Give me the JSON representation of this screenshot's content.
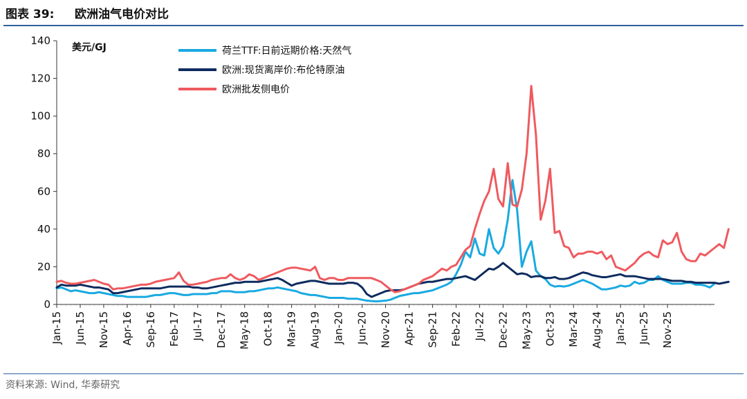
{
  "figure": {
    "number": "图表 39:",
    "title": "欧洲油气电价对比",
    "source": "资料来源: Wind, 华泰研究"
  },
  "chart_data": {
    "type": "line",
    "unit_label": "美元/GJ",
    "ylim": [
      0,
      140
    ],
    "yticks": [
      0,
      20,
      40,
      60,
      80,
      100,
      120,
      140
    ],
    "x_tick_labels": [
      "Jan-15",
      "Jun-15",
      "Nov-15",
      "Apr-16",
      "Sep-16",
      "Feb-17",
      "Jul-17",
      "Dec-17",
      "May-18",
      "Oct-18",
      "Mar-19",
      "Aug-19",
      "Jan-20",
      "Jun-20",
      "Nov-20",
      "Apr-21",
      "Sep-21",
      "Feb-22",
      "Jul-22",
      "Dec-22",
      "May-23",
      "Oct-23",
      "Mar-24",
      "Aug-24",
      "Jan-25",
      "Jun-25",
      "Nov-25"
    ],
    "x_start": "Jan-15",
    "x_interval": "monthly",
    "grid": false,
    "legend_position": "top-left",
    "series": [
      {
        "name": "荷兰TTF:日前远期价格:天然气",
        "color": "#19a9e1",
        "values": [
          8.5,
          9,
          8,
          7,
          7.5,
          7,
          6.5,
          6,
          6,
          6.5,
          6,
          5.5,
          5,
          4.5,
          4.5,
          4,
          4,
          4,
          4,
          4,
          4.5,
          5,
          5,
          5.5,
          6,
          6,
          5.5,
          5,
          5,
          5.5,
          5.5,
          5.5,
          5.5,
          6,
          6,
          7,
          7,
          7,
          6.5,
          6.5,
          6.5,
          7,
          7,
          7.5,
          8,
          8.5,
          8.5,
          9,
          8.5,
          8,
          7.5,
          7,
          6,
          5.5,
          5,
          5,
          4.5,
          4,
          3.5,
          3.5,
          3.5,
          3.5,
          3,
          3,
          3,
          2.5,
          2,
          1.8,
          1.6,
          1.8,
          2,
          2.5,
          3.5,
          4.5,
          5,
          5.5,
          6,
          6,
          6.5,
          7,
          7.5,
          8.5,
          9.5,
          10.5,
          12,
          16,
          21,
          28,
          25,
          35,
          27,
          26,
          40,
          30,
          27,
          31,
          45,
          66,
          50,
          20,
          28,
          33.5,
          18,
          15,
          13.5,
          10.5,
          9.5,
          9.8,
          9.5,
          10,
          11,
          12,
          13,
          12,
          11,
          9.5,
          8,
          8,
          8.5,
          9,
          10,
          9.5,
          10,
          12,
          11,
          11.5,
          13,
          13,
          15,
          13,
          12,
          11,
          11,
          11,
          11.5,
          11.5,
          10.5,
          10.5,
          10,
          9,
          11
        ]
      },
      {
        "name": "欧洲:现货离岸价:布伦特原油",
        "color": "#0d2b5e",
        "values": [
          9,
          10.5,
          10,
          10,
          10,
          10.5,
          10,
          9.5,
          9,
          9,
          8.5,
          8,
          6,
          6,
          6.5,
          7,
          7.5,
          8,
          8.5,
          8.5,
          8.5,
          8.5,
          8.5,
          9,
          9.5,
          9.5,
          9.5,
          9.5,
          9.5,
          9,
          9,
          8.5,
          8.5,
          9,
          9.5,
          10,
          10.5,
          11,
          11.5,
          11.5,
          12,
          12,
          12,
          12,
          12.5,
          13,
          13.5,
          14,
          13,
          11.5,
          10,
          11,
          11.5,
          12,
          12.5,
          12.5,
          12,
          11.5,
          11,
          11,
          11,
          11,
          11.5,
          11.5,
          11,
          9,
          5.5,
          4,
          5,
          6,
          7,
          7.5,
          7.5,
          7.5,
          8,
          9,
          10,
          11,
          11.5,
          12,
          12,
          12.5,
          13,
          13.5,
          13.5,
          14,
          14.5,
          15,
          14,
          13,
          15,
          17,
          19,
          18.5,
          20,
          22,
          20,
          18,
          16,
          16.5,
          16,
          14.5,
          15,
          15,
          14,
          14,
          14.5,
          13.5,
          13.5,
          14,
          15,
          16,
          17,
          16.5,
          15.5,
          15,
          14.5,
          14.5,
          15,
          15.5,
          16,
          15,
          15,
          15,
          14.5,
          14,
          13.5,
          13.5,
          13.5,
          13.5,
          13,
          12.5,
          12.5,
          12.5,
          12,
          12,
          11.5,
          11.5,
          11.5,
          11.5,
          11.5,
          11,
          11.5,
          12
        ]
      },
      {
        "name": "欧洲批发侧电价",
        "color": "#ef5a5e",
        "values": [
          12,
          12.5,
          11.5,
          11,
          11,
          11.5,
          12,
          12.5,
          13,
          12,
          11,
          10.5,
          8,
          8.5,
          8.5,
          9,
          9.5,
          10,
          10.5,
          10.5,
          11,
          12,
          12.5,
          13,
          13.5,
          14,
          17,
          12.5,
          10.5,
          10.5,
          11,
          11.5,
          12,
          13,
          13.5,
          14,
          14,
          16,
          14,
          13,
          14,
          16,
          15,
          13,
          14,
          15,
          16,
          17,
          18,
          19,
          19.5,
          19.5,
          19,
          18.5,
          18,
          20,
          14,
          13,
          14,
          14,
          13,
          13,
          14,
          14,
          14,
          14,
          14,
          14,
          13,
          12,
          10,
          8,
          6.5,
          7,
          8,
          9,
          10,
          11,
          13,
          14,
          15,
          17,
          19,
          18,
          20,
          21,
          25,
          29,
          31,
          40,
          48,
          55,
          60,
          72,
          56,
          52,
          75,
          53,
          52,
          61,
          80,
          116,
          90,
          45,
          55,
          72,
          38,
          39,
          31,
          30,
          25,
          27,
          27,
          28,
          28,
          27,
          28,
          24,
          26,
          20,
          19,
          18,
          20,
          22,
          25,
          27,
          28,
          26,
          25,
          34,
          32,
          33,
          38,
          28,
          24,
          23,
          23,
          27,
          26,
          28,
          30,
          32,
          30,
          40
        ]
      }
    ]
  }
}
